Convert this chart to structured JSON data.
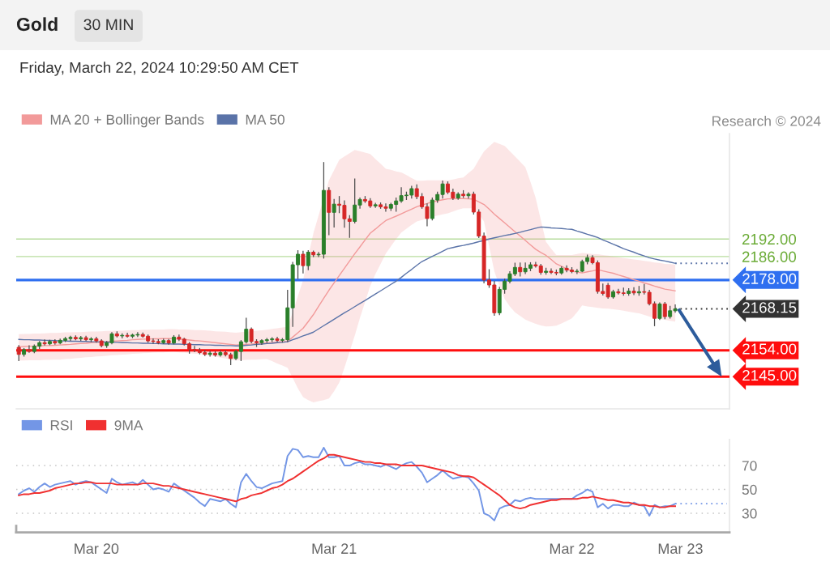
{
  "chart_data": [
    {
      "type": "candlestick",
      "title": "Gold",
      "subtitle": "Friday, March 22, 2024 10:29:50 AM CET",
      "annotations": [
        "30 MIN",
        "Research © 2024"
      ],
      "categories": [
        null,
        null,
        null,
        null,
        null,
        null,
        null,
        null,
        null,
        null,
        null,
        null,
        null,
        null,
        null,
        null,
        null,
        null,
        null,
        null,
        null,
        null,
        null,
        null,
        null,
        null,
        null,
        null,
        null,
        null,
        null,
        null,
        null,
        null,
        null,
        null,
        null,
        null,
        null,
        null,
        null,
        null,
        null,
        null,
        null,
        null,
        null,
        null,
        null,
        null,
        null,
        null,
        null,
        null,
        null,
        null,
        null,
        null,
        null,
        null,
        null,
        null,
        null,
        null,
        null,
        null,
        null,
        null,
        null,
        null,
        null,
        null,
        null,
        null,
        null,
        null,
        null,
        null,
        null,
        null,
        null,
        null,
        null,
        null,
        null,
        null,
        null,
        null,
        null,
        null,
        null,
        null,
        null,
        null,
        null,
        null,
        null,
        null,
        null,
        null,
        null,
        null,
        null,
        null,
        null,
        null,
        null,
        null,
        null,
        null,
        null,
        null,
        null,
        null,
        null,
        null,
        null,
        null,
        null,
        null,
        null,
        null,
        null,
        null,
        null,
        null,
        null,
        null
      ],
      "ohlc": [
        [
          2155.0,
          2155.6,
          2150.5,
          2152.6
        ],
        [
          2152.6,
          2154.6,
          2152.0,
          2154.2
        ],
        [
          2154.2,
          2155.5,
          2153.3,
          2153.6
        ],
        [
          2153.6,
          2155.8,
          2153.2,
          2155.4
        ],
        [
          2155.4,
          2157.0,
          2154.6,
          2156.6
        ],
        [
          2156.6,
          2157.5,
          2155.8,
          2156.2
        ],
        [
          2156.2,
          2157.4,
          2155.9,
          2157.0
        ],
        [
          2157.0,
          2157.6,
          2156.1,
          2156.5
        ],
        [
          2156.5,
          2157.8,
          2156.2,
          2157.4
        ],
        [
          2157.4,
          2158.4,
          2157.0,
          2158.0
        ],
        [
          2158.0,
          2158.8,
          2157.4,
          2158.4
        ],
        [
          2158.4,
          2158.9,
          2157.6,
          2157.9
        ],
        [
          2157.9,
          2158.7,
          2157.4,
          2158.3
        ],
        [
          2158.3,
          2158.8,
          2157.3,
          2157.6
        ],
        [
          2157.6,
          2158.3,
          2157.0,
          2157.9
        ],
        [
          2157.9,
          2158.4,
          2156.8,
          2157.2
        ],
        [
          2157.2,
          2157.6,
          2155.2,
          2155.6
        ],
        [
          2155.6,
          2157.0,
          2155.0,
          2156.6
        ],
        [
          2156.6,
          2160.0,
          2156.2,
          2159.6
        ],
        [
          2159.6,
          2160.3,
          2158.6,
          2158.9
        ],
        [
          2158.9,
          2159.6,
          2158.2,
          2159.1
        ],
        [
          2159.1,
          2159.8,
          2158.5,
          2158.8
        ],
        [
          2158.8,
          2159.5,
          2158.3,
          2159.2
        ],
        [
          2159.2,
          2160.0,
          2158.7,
          2159.4
        ],
        [
          2159.4,
          2159.9,
          2158.5,
          2158.8
        ],
        [
          2158.8,
          2159.2,
          2156.8,
          2157.2
        ],
        [
          2157.2,
          2157.9,
          2156.4,
          2157.0
        ],
        [
          2157.0,
          2157.6,
          2156.2,
          2156.6
        ],
        [
          2156.6,
          2157.8,
          2156.3,
          2157.3
        ],
        [
          2157.3,
          2157.7,
          2156.1,
          2156.5
        ],
        [
          2156.5,
          2159.0,
          2156.2,
          2158.5
        ],
        [
          2158.5,
          2159.2,
          2157.3,
          2157.8
        ],
        [
          2157.8,
          2158.1,
          2155.8,
          2156.2
        ],
        [
          2156.2,
          2156.6,
          2153.0,
          2154.3
        ],
        [
          2154.3,
          2155.3,
          2153.5,
          2154.0
        ],
        [
          2154.0,
          2154.6,
          2152.8,
          2153.2
        ],
        [
          2153.2,
          2153.9,
          2152.2,
          2152.6
        ],
        [
          2152.6,
          2153.6,
          2152.0,
          2153.0
        ],
        [
          2153.0,
          2153.5,
          2152.0,
          2152.4
        ],
        [
          2152.4,
          2153.8,
          2152.0,
          2153.2
        ],
        [
          2153.2,
          2153.7,
          2152.1,
          2152.5
        ],
        [
          2152.5,
          2153.0,
          2149.1,
          2151.2
        ],
        [
          2151.2,
          2154.0,
          2150.8,
          2153.6
        ],
        [
          2153.6,
          2157.3,
          2150.5,
          2156.9
        ],
        [
          2156.9,
          2164.9,
          2156.5,
          2161.2
        ],
        [
          2161.2,
          2161.6,
          2156.6,
          2157.0
        ],
        [
          2157.0,
          2157.6,
          2155.3,
          2156.6
        ],
        [
          2156.6,
          2157.6,
          2156.0,
          2157.3
        ],
        [
          2157.3,
          2158.0,
          2156.7,
          2157.6
        ],
        [
          2157.6,
          2158.3,
          2157.0,
          2157.9
        ],
        [
          2157.9,
          2158.4,
          2157.0,
          2157.4
        ],
        [
          2157.4,
          2158.0,
          2156.8,
          2157.6
        ],
        [
          2157.6,
          2174.5,
          2157.0,
          2168.5
        ],
        [
          2168.5,
          2184.0,
          2162.2,
          2183.2
        ],
        [
          2183.2,
          2188.0,
          2178.5,
          2186.8
        ],
        [
          2186.8,
          2187.8,
          2180.4,
          2182.9
        ],
        [
          2182.9,
          2188.0,
          2181.5,
          2187.5
        ],
        [
          2187.5,
          2187.9,
          2186.0,
          2186.6
        ],
        [
          2186.6,
          2187.4,
          2186.0,
          2186.8
        ],
        [
          2186.8,
          2218.1,
          2185.5,
          2208.6
        ],
        [
          2208.6,
          2209.5,
          2193.5,
          2201.1
        ],
        [
          2201.1,
          2205.5,
          2196.1,
          2203.9
        ],
        [
          2203.9,
          2206.5,
          2201.0,
          2203.5
        ],
        [
          2203.5,
          2205.0,
          2196.0,
          2198.9
        ],
        [
          2198.9,
          2200.0,
          2192.6,
          2198.0
        ],
        [
          2198.0,
          2212.5,
          2197.5,
          2203.6
        ],
        [
          2203.6,
          2206.0,
          2202.5,
          2205.5
        ],
        [
          2205.5,
          2206.5,
          2204.5,
          2205.0
        ],
        [
          2205.0,
          2205.8,
          2202.8,
          2203.3
        ],
        [
          2203.3,
          2204.2,
          2202.8,
          2203.7
        ],
        [
          2203.7,
          2204.3,
          2202.5,
          2203.0
        ],
        [
          2203.0,
          2204.0,
          2201.5,
          2202.5
        ],
        [
          2202.5,
          2204.2,
          2201.8,
          2203.8
        ],
        [
          2203.8,
          2206.0,
          2201.5,
          2205.0
        ],
        [
          2205.0,
          2209.5,
          2204.5,
          2206.8
        ],
        [
          2206.8,
          2208.0,
          2205.5,
          2207.0
        ],
        [
          2207.0,
          2210.0,
          2206.0,
          2209.2
        ],
        [
          2209.2,
          2210.5,
          2205.8,
          2206.5
        ],
        [
          2206.5,
          2207.5,
          2202.5,
          2203.0
        ],
        [
          2203.0,
          2204.0,
          2196.5,
          2199.0
        ],
        [
          2199.0,
          2206.0,
          2198.5,
          2205.3
        ],
        [
          2205.3,
          2208.0,
          2204.5,
          2207.2
        ],
        [
          2207.2,
          2211.8,
          2206.0,
          2210.8
        ],
        [
          2210.8,
          2211.5,
          2207.5,
          2208.0
        ],
        [
          2208.0,
          2209.0,
          2205.5,
          2206.0
        ],
        [
          2206.0,
          2207.8,
          2205.6,
          2207.3
        ],
        [
          2207.3,
          2208.5,
          2206.2,
          2206.8
        ],
        [
          2206.8,
          2207.8,
          2206.0,
          2207.3
        ],
        [
          2207.3,
          2208.0,
          2200.5,
          2201.2
        ],
        [
          2201.2,
          2202.0,
          2192.5,
          2193.0
        ],
        [
          2193.0,
          2194.0,
          2177.0,
          2178.0
        ],
        [
          2178.0,
          2181.5,
          2175.5,
          2176.3
        ],
        [
          2176.3,
          2177.5,
          2166.0,
          2166.8
        ],
        [
          2166.8,
          2175.5,
          2166.2,
          2174.8
        ],
        [
          2174.8,
          2178.3,
          2173.5,
          2177.6
        ],
        [
          2177.6,
          2180.8,
          2177.0,
          2180.1
        ],
        [
          2180.1,
          2183.7,
          2179.5,
          2182.3
        ],
        [
          2182.3,
          2183.8,
          2179.4,
          2180.8
        ],
        [
          2180.8,
          2183.8,
          2180.2,
          2182.0
        ],
        [
          2182.0,
          2183.9,
          2181.2,
          2183.2
        ],
        [
          2183.2,
          2184.0,
          2182.4,
          2182.8
        ],
        [
          2182.8,
          2183.3,
          2180.0,
          2180.6
        ],
        [
          2180.6,
          2182.0,
          2180.0,
          2181.0
        ],
        [
          2181.0,
          2181.8,
          2180.2,
          2180.6
        ],
        [
          2180.6,
          2181.4,
          2179.8,
          2180.4
        ],
        [
          2180.4,
          2182.5,
          2180.0,
          2182.0
        ],
        [
          2182.0,
          2182.8,
          2180.8,
          2181.4
        ],
        [
          2181.4,
          2182.2,
          2180.5,
          2180.9
        ],
        [
          2180.9,
          2181.6,
          2180.2,
          2181.0
        ],
        [
          2181.0,
          2184.8,
          2180.8,
          2184.3
        ],
        [
          2184.3,
          2186.5,
          2183.5,
          2185.6
        ],
        [
          2185.6,
          2186.3,
          2183.5,
          2183.9
        ],
        [
          2183.9,
          2184.5,
          2173.5,
          2174.1
        ],
        [
          2174.1,
          2176.6,
          2172.9,
          2173.4
        ],
        [
          2176.2,
          2176.8,
          2171.8,
          2172.2
        ],
        [
          2172.2,
          2174.5,
          2171.8,
          2174.0
        ],
        [
          2174.0,
          2174.8,
          2173.2,
          2173.6
        ],
        [
          2173.6,
          2175.2,
          2172.8,
          2173.4
        ],
        [
          2173.4,
          2175.0,
          2172.8,
          2174.2
        ],
        [
          2174.2,
          2175.4,
          2173.0,
          2173.6
        ],
        [
          2173.6,
          2175.8,
          2172.8,
          2174.0
        ],
        [
          2174.0,
          2176.5,
          2173.2,
          2173.8
        ],
        [
          2173.8,
          2174.5,
          2169.5,
          2169.9
        ],
        [
          2169.9,
          2170.5,
          2162.4,
          2164.9
        ],
        [
          2164.9,
          2170.2,
          2164.5,
          2169.8
        ],
        [
          2169.8,
          2170.3,
          2164.8,
          2165.5
        ],
        [
          2165.5,
          2169.0,
          2165.0,
          2167.5
        ],
        [
          2167.5,
          2169.5,
          2167.0,
          2168.15
        ]
      ],
      "series": [
        {
          "name": "MA 20 + Bollinger Bands",
          "type": "line",
          "color": "#f29a9a",
          "values": [
            2155.2,
            2155.3,
            2155.4,
            2155.4,
            2155.5,
            2155.6,
            2155.6,
            2155.7,
            2155.8,
            2155.9,
            2156.0,
            2156.2,
            2156.3,
            2156.4,
            2156.6,
            2156.7,
            2156.8,
            2156.9,
            2157.1,
            2157.2,
            2157.3,
            2157.4,
            2157.6,
            2157.7,
            2157.8,
            2157.8,
            2157.9,
            2157.9,
            2158.0,
            2158.0,
            2158.0,
            2157.8,
            2157.7,
            2157.5,
            2157.3,
            2157.2,
            2157.0,
            2156.8,
            2156.6,
            2156.4,
            2156.2,
            2156.0,
            2155.8,
            2155.9,
            2156.0,
            2156.1,
            2156.3,
            2156.4,
            2156.5,
            2156.6,
            2156.8,
            2156.9,
            2157.0,
            2158.5,
            2160.0,
            2161.5,
            2163.8,
            2166.2,
            2169.0,
            2171.8,
            2174.5,
            2177.0,
            2179.5,
            2182.0,
            2184.5,
            2187.0,
            2189.3,
            2191.7,
            2194.0,
            2195.4,
            2196.9,
            2198.3,
            2199.1,
            2199.8,
            2200.6,
            2201.4,
            2202.2,
            2203.0,
            2203.6,
            2204.1,
            2204.7,
            2205.0,
            2205.4,
            2205.7,
            2205.7,
            2205.8,
            2205.8,
            2205.7,
            2205.6,
            2204.7,
            2203.8,
            2202.2,
            2200.5,
            2199.0,
            2197.5,
            2196.0,
            2194.5,
            2193.0,
            2191.5,
            2190.0,
            2188.5,
            2187.4,
            2186.4,
            2185.0,
            2183.5,
            2182.7,
            2181.8,
            2181.0,
            2180.7,
            2180.4,
            2180.8,
            2181.1,
            2181.5,
            2181.1,
            2180.7,
            2180.3,
            2179.7,
            2179.2,
            2178.7,
            2178.1,
            2177.6,
            2177.0,
            2176.5,
            2175.9,
            2175.4,
            2174.9,
            2174.6,
            2174.3
          ],
          "lower": [
            2150.5,
            2150.5,
            2150.6,
            2150.6,
            2150.6,
            2150.7,
            2150.7,
            2150.8,
            2150.8,
            2151.0,
            2151.1,
            2151.3,
            2151.4,
            2151.6,
            2151.7,
            2151.9,
            2152.0,
            2152.1,
            2152.3,
            2152.4,
            2152.5,
            2152.6,
            2152.8,
            2152.9,
            2153.0,
            2153.1,
            2153.2,
            2153.3,
            2153.3,
            2153.4,
            2153.5,
            2153.3,
            2153.2,
            2153.0,
            2152.8,
            2152.7,
            2152.5,
            2152.2,
            2151.8,
            2151.5,
            2151.2,
            2150.8,
            2150.5,
            2150.6,
            2150.7,
            2150.8,
            2150.8,
            2150.9,
            2151.0,
            2150.3,
            2149.5,
            2148.8,
            2148.0,
            2144.5,
            2141.0,
            2138.0,
            2137.0,
            2136.2,
            2136.6,
            2137.0,
            2137.5,
            2140.0,
            2143.0,
            2148.0,
            2153.5,
            2159.0,
            2165.0,
            2170.5,
            2176.0,
            2180.0,
            2183.5,
            2187.0,
            2189.5,
            2192.0,
            2194.2,
            2195.5,
            2196.8,
            2198.0,
            2198.5,
            2199.0,
            2199.5,
            2200.0,
            2200.4,
            2200.8,
            2201.4,
            2202.0,
            2202.5,
            2202.5,
            2202.5,
            2200.5,
            2198.0,
            2189.5,
            2181.0,
            2176.0,
            2171.5,
            2169.0,
            2167.0,
            2165.7,
            2164.5,
            2163.7,
            2163.0,
            2162.5,
            2162.1,
            2162.2,
            2162.4,
            2163.2,
            2164.0,
            2164.9,
            2167.0,
            2169.3,
            2169.0,
            2168.8,
            2168.5,
            2168.3,
            2168.2,
            2168.0,
            2167.8,
            2167.5,
            2167.2,
            2166.9,
            2166.6,
            2166.1,
            2165.5,
            2165.0,
            2164.7,
            2164.4,
            2164.1,
            2163.8
          ],
          "upper": [
            2159.5,
            2159.6,
            2159.6,
            2159.7,
            2159.7,
            2159.8,
            2159.9,
            2159.9,
            2160.0,
            2160.1,
            2160.1,
            2160.2,
            2160.2,
            2160.3,
            2160.4,
            2160.4,
            2160.5,
            2160.6,
            2160.6,
            2160.7,
            2160.7,
            2160.8,
            2160.9,
            2160.9,
            2161.0,
            2161.0,
            2161.1,
            2161.1,
            2161.1,
            2161.2,
            2161.2,
            2161.1,
            2161.1,
            2161.0,
            2160.9,
            2160.9,
            2160.8,
            2160.7,
            2160.5,
            2160.4,
            2160.3,
            2160.1,
            2160.0,
            2160.2,
            2160.3,
            2160.5,
            2160.7,
            2160.8,
            2161.0,
            2161.3,
            2161.5,
            2161.8,
            2162.0,
            2167.0,
            2172.5,
            2178.0,
            2186.0,
            2194.0,
            2200.0,
            2206.0,
            2212.0,
            2215.5,
            2219.0,
            2220.2,
            2221.3,
            2222.4,
            2222.0,
            2221.5,
            2221.0,
            2219.3,
            2217.7,
            2216.0,
            2215.6,
            2215.1,
            2214.7,
            2213.8,
            2212.8,
            2211.9,
            2211.9,
            2212.0,
            2212.0,
            2212.0,
            2212.0,
            2212.0,
            2212.3,
            2212.7,
            2213.0,
            2214.5,
            2216.0,
            2219.0,
            2221.9,
            2223.6,
            2225.2,
            2224.5,
            2223.8,
            2222.0,
            2220.2,
            2218.4,
            2216.5,
            2211.5,
            2206.0,
            2198.5,
            2191.0,
            2188.7,
            2186.5,
            2186.5,
            2186.5,
            2186.5,
            2186.9,
            2187.2,
            2187.1,
            2186.9,
            2186.8,
            2186.5,
            2186.3,
            2186.0,
            2185.8,
            2185.5,
            2185.3,
            2185.0,
            2184.8,
            2184.5,
            2184.3,
            2184.0,
            2183.8,
            2183.5,
            2183.4,
            2183.2
          ]
        },
        {
          "name": "MA 50",
          "type": "line",
          "color": "#5a73a8",
          "values": [
            2157.7,
            2157.6,
            2157.6,
            2157.5,
            2157.5,
            2157.4,
            2157.4,
            2157.3,
            2157.2,
            2157.2,
            2157.1,
            2157.1,
            2157.0,
            2157.0,
            2156.9,
            2156.9,
            2156.8,
            2156.8,
            2156.7,
            2156.7,
            2156.6,
            2156.6,
            2156.5,
            2156.5,
            2156.4,
            2156.4,
            2156.3,
            2156.3,
            2156.2,
            2156.2,
            2156.1,
            2156.1,
            2156.0,
            2156.0,
            2155.9,
            2155.9,
            2155.8,
            2155.8,
            2155.7,
            2155.7,
            2155.6,
            2155.6,
            2155.5,
            2155.5,
            2155.7,
            2155.8,
            2156.0,
            2156.1,
            2156.3,
            2156.4,
            2156.6,
            2156.7,
            2156.9,
            2157.6,
            2158.2,
            2158.9,
            2159.5,
            2160.2,
            2161.3,
            2162.4,
            2163.5,
            2164.6,
            2165.7,
            2166.8,
            2167.8,
            2168.9,
            2170.0,
            2171.0,
            2172.1,
            2173.2,
            2174.3,
            2175.4,
            2176.5,
            2177.6,
            2178.9,
            2180.3,
            2181.6,
            2183.0,
            2184.3,
            2185.2,
            2186.1,
            2186.9,
            2187.8,
            2188.7,
            2189.1,
            2189.5,
            2189.8,
            2190.2,
            2190.6,
            2191.1,
            2191.5,
            2192.0,
            2192.4,
            2192.8,
            2193.2,
            2193.5,
            2193.9,
            2194.3,
            2194.8,
            2195.2,
            2195.7,
            2196.1,
            2196.0,
            2195.8,
            2195.7,
            2195.6,
            2195.4,
            2195.3,
            2194.7,
            2194.2,
            2193.6,
            2193.1,
            2192.5,
            2191.7,
            2191.0,
            2190.2,
            2189.5,
            2188.7,
            2188.1,
            2187.5,
            2186.8,
            2186.2,
            2185.6,
            2185.2,
            2184.8,
            2184.5,
            2184.1,
            2183.7
          ]
        }
      ],
      "ylim": [
        2134,
        2228
      ],
      "yticks": [
        {
          "value": 2186,
          "label": "2186.00"
        },
        {
          "value": 2192,
          "label": "2192.00"
        }
      ],
      "grid": "y",
      "tick_labels": "y",
      "legend": "top left",
      "ref_lines": [
        {
          "axis": "y",
          "value": 2178,
          "label": "2178.00",
          "color": "#2f6ff0"
        },
        {
          "axis": "y",
          "value": 2168.15,
          "label": "2168.15",
          "color": "#333333",
          "line_style": "dotted"
        },
        {
          "axis": "y",
          "value": 2154,
          "label": "2154.00",
          "color": "#ff0d0d"
        },
        {
          "axis": "y",
          "value": 2145,
          "label": "2145.00",
          "color": "#ff0d0d"
        }
      ]
    },
    {
      "type": "line",
      "categories": [
        null,
        null,
        null,
        null,
        null,
        null,
        null,
        null,
        null,
        null,
        null,
        null,
        null,
        null,
        null,
        "Mar 20",
        null,
        null,
        null,
        null,
        null,
        null,
        null,
        null,
        null,
        null,
        null,
        null,
        null,
        null,
        null,
        null,
        null,
        null,
        null,
        null,
        null,
        null,
        null,
        null,
        null,
        null,
        null,
        null,
        null,
        null,
        null,
        null,
        null,
        null,
        null,
        null,
        null,
        null,
        null,
        null,
        null,
        null,
        null,
        null,
        null,
        "Mar 21",
        null,
        null,
        null,
        null,
        null,
        null,
        null,
        null,
        null,
        null,
        null,
        null,
        null,
        null,
        null,
        null,
        null,
        null,
        null,
        null,
        null,
        null,
        null,
        null,
        null,
        null,
        null,
        null,
        null,
        null,
        null,
        null,
        null,
        null,
        null,
        null,
        null,
        null,
        null,
        null,
        null,
        null,
        null,
        null,
        null,
        "Mar 22",
        null,
        null,
        null,
        null,
        null,
        null,
        null,
        null,
        null,
        null,
        null,
        null,
        null,
        null,
        null,
        null,
        null,
        null,
        null,
        null,
        "Mar 23",
        null,
        null,
        null,
        null,
        null,
        null,
        null,
        null,
        null
      ],
      "series": [
        {
          "name": "RSI",
          "color": "#7396e6",
          "values": [
            46,
            49,
            51,
            48,
            52,
            55,
            52,
            54,
            55,
            56,
            57,
            54,
            56,
            57,
            56,
            53,
            50,
            47,
            59,
            56,
            54,
            55,
            56,
            54,
            58,
            54,
            50,
            51,
            50,
            48,
            55,
            52,
            49,
            46,
            43,
            39,
            36,
            42,
            41,
            40,
            42,
            38,
            35,
            56,
            63,
            57,
            52,
            51,
            53,
            55,
            56,
            57,
            78,
            84,
            83,
            77,
            78,
            77,
            77,
            85,
            77,
            77,
            78,
            70,
            70,
            72,
            73,
            71,
            71,
            70,
            69,
            71,
            69,
            67,
            70,
            72,
            73,
            69,
            64,
            56,
            59,
            62,
            66,
            62,
            59,
            60,
            61,
            60,
            55,
            49,
            30,
            28,
            24,
            34,
            36,
            37,
            41,
            40,
            42,
            43,
            42,
            42,
            42,
            42,
            42,
            42,
            42,
            42,
            45,
            47,
            50,
            48,
            35,
            38,
            34,
            37,
            37,
            36,
            36,
            39,
            37,
            36,
            28,
            37,
            35,
            36,
            36,
            38,
            null,
            null,
            null,
            null,
            null,
            null,
            null,
            null,
            null,
            null
          ]
        },
        {
          "name": "9MA",
          "color": "#f03030",
          "values": [
            45,
            46,
            46,
            47,
            47,
            48,
            49,
            51,
            52,
            53,
            54,
            55,
            55,
            56,
            56,
            55,
            55,
            55,
            55,
            54,
            54,
            54,
            54,
            54,
            55,
            55,
            55,
            54,
            53,
            53,
            52,
            51,
            50,
            49,
            48,
            47,
            46,
            45,
            44,
            43,
            42,
            41,
            40,
            42,
            43,
            45,
            46,
            47,
            49,
            51,
            52,
            54,
            57,
            59,
            62,
            65,
            68,
            71,
            74,
            76,
            79,
            79,
            78,
            77,
            76,
            75,
            74,
            73,
            73,
            72,
            72,
            71,
            71,
            71,
            70,
            70,
            70,
            70,
            70,
            69,
            68,
            67,
            66,
            65,
            64,
            62,
            61,
            61,
            60,
            57,
            54,
            51,
            48,
            45,
            41,
            37,
            35,
            34,
            35,
            37,
            38,
            39,
            40,
            41,
            41,
            42,
            42,
            42,
            42,
            43,
            43,
            44,
            43,
            42,
            41,
            41,
            40,
            39,
            39,
            38,
            37,
            37,
            36,
            36,
            35,
            35,
            36,
            36,
            null,
            null,
            null,
            null,
            null,
            null,
            null,
            null,
            null,
            null
          ]
        },
        {
          "type": "line",
          "color": "#7396e6",
          "line_style": "dotted",
          "values": [
            null,
            null,
            null,
            null,
            null,
            null,
            null,
            null,
            null,
            null,
            null,
            null,
            null,
            null,
            null,
            null,
            null,
            null,
            null,
            null,
            null,
            null,
            null,
            null,
            null,
            null,
            null,
            null,
            null,
            null,
            null,
            null,
            null,
            null,
            null,
            null,
            null,
            null,
            null,
            null,
            null,
            null,
            null,
            null,
            null,
            null,
            null,
            null,
            null,
            null,
            null,
            null,
            null,
            null,
            null,
            null,
            null,
            null,
            null,
            null,
            null,
            null,
            null,
            null,
            null,
            null,
            null,
            null,
            null,
            null,
            null,
            null,
            null,
            null,
            null,
            null,
            null,
            null,
            null,
            null,
            null,
            null,
            null,
            null,
            null,
            null,
            null,
            null,
            null,
            null,
            null,
            null,
            null,
            null,
            null,
            null,
            null,
            null,
            null,
            null,
            null,
            null,
            null,
            null,
            null,
            null,
            null,
            null,
            null,
            null,
            null,
            null,
            null,
            null,
            null,
            null,
            null,
            null,
            null,
            null,
            null,
            null,
            null,
            null,
            null,
            null,
            null,
            38,
            38,
            38,
            38,
            38,
            38,
            38,
            38,
            38,
            38,
            38
          ]
        }
      ],
      "ylim": [
        14,
        92
      ],
      "yticks": [
        30,
        50,
        70
      ],
      "grid": "y",
      "legend": "top left"
    }
  ]
}
